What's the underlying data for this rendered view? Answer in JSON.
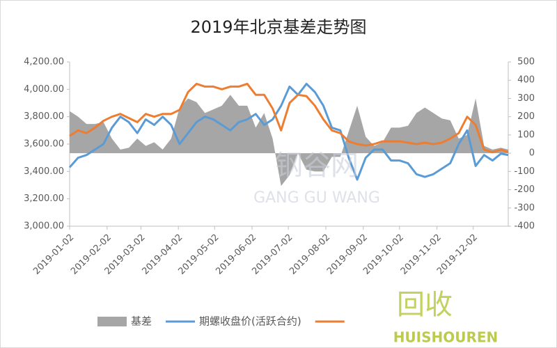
{
  "chart_data": {
    "type": "line",
    "title": "2019年北京基差走势图",
    "x": [
      "2019-01-02",
      "2019-01-09",
      "2019-01-16",
      "2019-01-23",
      "2019-01-30",
      "2019-02-06",
      "2019-02-13",
      "2019-02-20",
      "2019-02-27",
      "2019-03-06",
      "2019-03-13",
      "2019-03-20",
      "2019-03-27",
      "2019-04-03",
      "2019-04-10",
      "2019-04-17",
      "2019-04-24",
      "2019-05-01",
      "2019-05-08",
      "2019-05-15",
      "2019-05-22",
      "2019-05-29",
      "2019-06-05",
      "2019-06-12",
      "2019-06-19",
      "2019-06-26",
      "2019-07-03",
      "2019-07-10",
      "2019-07-17",
      "2019-07-24",
      "2019-07-31",
      "2019-08-07",
      "2019-08-14",
      "2019-08-21",
      "2019-08-28",
      "2019-09-04",
      "2019-09-11",
      "2019-09-18",
      "2019-09-25",
      "2019-10-02",
      "2019-10-09",
      "2019-10-16",
      "2019-10-23",
      "2019-10-30",
      "2019-11-06",
      "2019-11-13",
      "2019-11-20",
      "2019-11-27",
      "2019-12-04",
      "2019-12-11",
      "2019-12-18",
      "2019-12-25",
      "2019-12-31"
    ],
    "xlim": [
      "2019-01-02",
      "2019-12-31"
    ],
    "xticks": [
      "2019-01-02",
      "2019-02-02",
      "2019-03-02",
      "2019-04-02",
      "2019-05-02",
      "2019-06-02",
      "2019-07-02",
      "2019-08-02",
      "2019-09-02",
      "2019-10-02",
      "2019-11-02",
      "2019-12-02"
    ],
    "ylim": [
      3000,
      4200
    ],
    "yticks": [
      {
        "value": 3000,
        "label": "3,000.00"
      },
      {
        "value": 3200,
        "label": "3,200.00"
      },
      {
        "value": 3400,
        "label": "3,400.00"
      },
      {
        "value": 3600,
        "label": "3,600.00"
      },
      {
        "value": 3800,
        "label": "3,800.00"
      },
      {
        "value": 4000,
        "label": "4,000.00"
      },
      {
        "value": 4200,
        "label": "4,200.00"
      }
    ],
    "y2lim": [
      -400,
      500
    ],
    "y2ticks": [
      -400,
      -300,
      -200,
      -100,
      0,
      100,
      200,
      300,
      400,
      500
    ],
    "series": [
      {
        "name": "基差",
        "type": "area",
        "axis": "y2",
        "color": "#a6a6a6",
        "values": [
          230,
          200,
          160,
          160,
          170,
          80,
          20,
          30,
          80,
          40,
          60,
          20,
          80,
          250,
          300,
          280,
          220,
          240,
          260,
          320,
          260,
          260,
          140,
          220,
          80,
          -180,
          -120,
          0,
          -90,
          -100,
          -100,
          -20,
          -20,
          120,
          260,
          90,
          40,
          60,
          140,
          140,
          150,
          220,
          250,
          220,
          190,
          180,
          80,
          100,
          300,
          40,
          20,
          30,
          20
        ]
      },
      {
        "name": "期螺收盘价(活跃合约)",
        "type": "line",
        "color": "#5b9bd5",
        "values": [
          3430,
          3500,
          3520,
          3560,
          3600,
          3720,
          3800,
          3760,
          3680,
          3780,
          3740,
          3800,
          3740,
          3600,
          3680,
          3760,
          3800,
          3780,
          3740,
          3700,
          3760,
          3780,
          3820,
          3740,
          3780,
          3880,
          4020,
          3960,
          4040,
          3980,
          3880,
          3720,
          3700,
          3500,
          3340,
          3500,
          3560,
          3560,
          3480,
          3480,
          3460,
          3380,
          3360,
          3380,
          3420,
          3460,
          3600,
          3700,
          3440,
          3520,
          3480,
          3530,
          3520
        ]
      },
      {
        "type": "line",
        "color": "#ed7d31",
        "values": [
          3660,
          3700,
          3680,
          3720,
          3770,
          3800,
          3820,
          3790,
          3760,
          3820,
          3800,
          3820,
          3820,
          3850,
          3980,
          4040,
          4020,
          4020,
          4000,
          4020,
          4020,
          4040,
          3960,
          3960,
          3860,
          3700,
          3900,
          3960,
          3950,
          3880,
          3780,
          3700,
          3680,
          3620,
          3600,
          3590,
          3600,
          3620,
          3620,
          3620,
          3610,
          3600,
          3610,
          3600,
          3610,
          3640,
          3680,
          3800,
          3740,
          3560,
          3540,
          3560,
          3540
        ]
      }
    ],
    "watermarks": [
      "钢谷网",
      "GANG GU WANG",
      "回收",
      "HUISHOUREN"
    ]
  }
}
